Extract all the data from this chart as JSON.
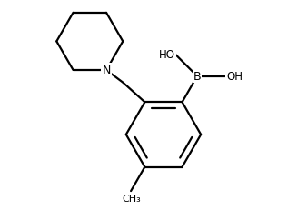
{
  "bg_color": "#ffffff",
  "line_color": "#000000",
  "line_width": 1.6,
  "fig_width": 3.27,
  "fig_height": 2.32,
  "dpi": 100,
  "font_size": 9.0,
  "labels": {
    "N": "N",
    "B": "B",
    "HO_top": "HO",
    "OH_right": "OH"
  }
}
